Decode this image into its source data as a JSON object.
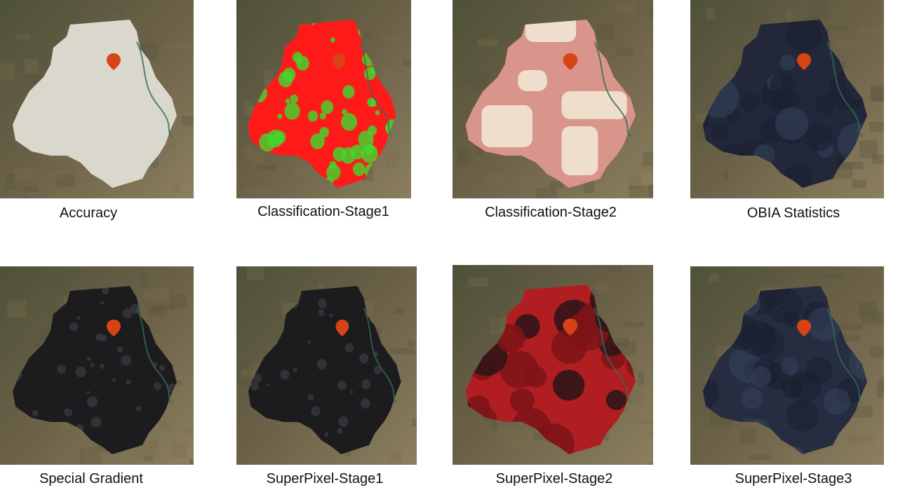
{
  "panels": [
    {
      "caption": "Accuracy",
      "fill": "#dad7cd",
      "style": "flat",
      "pin": "#d84315"
    },
    {
      "caption": "Classification-Stage1",
      "fill": "#ff1a1a",
      "style": "classified",
      "pin": "#d84315"
    },
    {
      "caption": "Classification-Stage2",
      "fill": "#d9948b",
      "style": "blocks",
      "pin": "#d84315"
    },
    {
      "caption": "OBIA Statistics",
      "fill": "#22283a",
      "style": "segments",
      "pin": "#d84315"
    },
    {
      "caption": "Special Gradient",
      "fill": "#1c1c1f",
      "style": "texture",
      "pin": "#d84315"
    },
    {
      "caption": "SuperPixel-Stage1",
      "fill": "#1c1c1f",
      "style": "texture",
      "pin": "#d84315"
    },
    {
      "caption": "SuperPixel-Stage2",
      "fill": "#b01e22",
      "style": "superpixels",
      "pin": "#d84315"
    },
    {
      "caption": "SuperPixel-Stage3",
      "fill": "#262d40",
      "style": "segments",
      "pin": "#d84315"
    }
  ],
  "colors": {
    "satellite_base": "#6b6148",
    "satellite_dark": "#4e5138",
    "satellite_light": "#8c7f5f",
    "river": "#2f6b5a",
    "green_patch": "#3ddb2e"
  }
}
